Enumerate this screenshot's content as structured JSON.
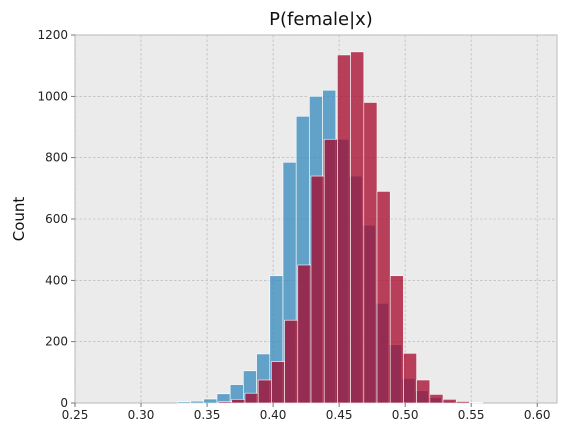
{
  "chart_data": {
    "type": "histogram",
    "title": "P(female|x)",
    "xlabel": "",
    "ylabel": "Count",
    "xlim": [
      0.25,
      0.615
    ],
    "ylim": [
      0,
      1200
    ],
    "xticks": [
      "0.25",
      "0.30",
      "0.35",
      "0.40",
      "0.45",
      "0.50",
      "0.55",
      "0.60"
    ],
    "yticks": [
      "0",
      "200",
      "400",
      "600",
      "800",
      "1000",
      "1200"
    ],
    "grid": true,
    "colors": {
      "plot_background": "#ebebeb",
      "grid": "#b0b0b0",
      "blue": "#348abd",
      "red": "#a60628",
      "overlap": "#7a1f48"
    },
    "series": [
      {
        "name": "blue",
        "color": "#348abd",
        "bins": [
          [
            0.3275,
            0.3375,
            4
          ],
          [
            0.3375,
            0.3475,
            6
          ],
          [
            0.3475,
            0.3575,
            13
          ],
          [
            0.3575,
            0.3675,
            30
          ],
          [
            0.3675,
            0.3775,
            60
          ],
          [
            0.3775,
            0.3875,
            105
          ],
          [
            0.3875,
            0.3975,
            160
          ],
          [
            0.3975,
            0.4075,
            415
          ],
          [
            0.4075,
            0.4175,
            785
          ],
          [
            0.4175,
            0.4275,
            935
          ],
          [
            0.4275,
            0.4375,
            1000
          ],
          [
            0.4375,
            0.4475,
            1020
          ],
          [
            0.4475,
            0.4575,
            860
          ],
          [
            0.4575,
            0.4675,
            740
          ],
          [
            0.4675,
            0.4775,
            580
          ],
          [
            0.4775,
            0.4875,
            325
          ],
          [
            0.4875,
            0.4975,
            190
          ],
          [
            0.4975,
            0.5075,
            80
          ],
          [
            0.5075,
            0.5175,
            40
          ],
          [
            0.5175,
            0.5275,
            18
          ],
          [
            0.5275,
            0.5375,
            6
          ]
        ]
      },
      {
        "name": "red",
        "color": "#a60628",
        "bins": [
          [
            0.3587,
            0.3687,
            4
          ],
          [
            0.3687,
            0.3787,
            12
          ],
          [
            0.3787,
            0.3887,
            32
          ],
          [
            0.3887,
            0.3987,
            75
          ],
          [
            0.3987,
            0.4087,
            135
          ],
          [
            0.4087,
            0.4187,
            270
          ],
          [
            0.4187,
            0.4287,
            450
          ],
          [
            0.4287,
            0.4387,
            740
          ],
          [
            0.4387,
            0.4487,
            860
          ],
          [
            0.4487,
            0.4587,
            1135
          ],
          [
            0.4587,
            0.4687,
            1145
          ],
          [
            0.4687,
            0.4787,
            980
          ],
          [
            0.4787,
            0.4887,
            690
          ],
          [
            0.4887,
            0.4987,
            415
          ],
          [
            0.4987,
            0.5087,
            162
          ],
          [
            0.5087,
            0.5187,
            75
          ],
          [
            0.5187,
            0.5287,
            28
          ],
          [
            0.5287,
            0.5387,
            12
          ],
          [
            0.5387,
            0.5487,
            5
          ],
          [
            0.5487,
            0.5587,
            2
          ]
        ]
      }
    ]
  }
}
